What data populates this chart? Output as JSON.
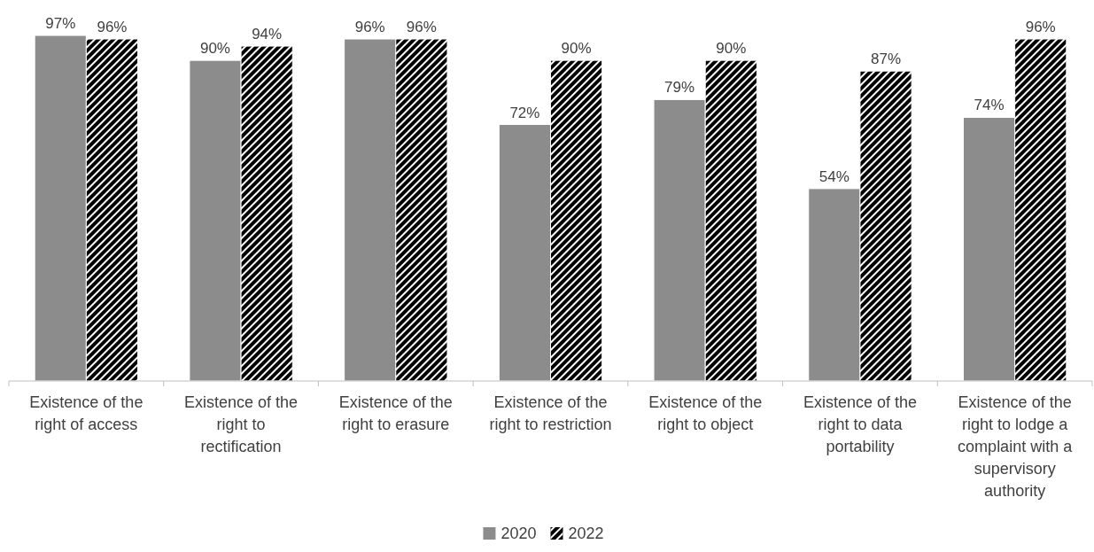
{
  "chart_data": {
    "type": "bar",
    "categories": [
      "Existence of the right of access",
      "Existence of the right to rectification",
      "Existence of the right to erasure",
      "Existence of the right to restriction",
      "Existence of the right to object",
      "Existence of the right to data portability",
      "Existence of the right to lodge a complaint with a supervisory authority"
    ],
    "series": [
      {
        "name": "2020",
        "color": "#8c8c8c",
        "values": [
          97,
          90,
          96,
          72,
          79,
          54,
          74
        ],
        "value_labels": [
          "97%",
          "90%",
          "96%",
          "72%",
          "79%",
          "54%",
          "74%"
        ]
      },
      {
        "name": "2022",
        "color": "#000000",
        "values": [
          96,
          94,
          96,
          90,
          90,
          87,
          96
        ],
        "value_labels": [
          "96%",
          "94%",
          "96%",
          "90%",
          "90%",
          "87%",
          "96%"
        ]
      }
    ],
    "tick_labels": "x",
    "legend": "bottom"
  }
}
